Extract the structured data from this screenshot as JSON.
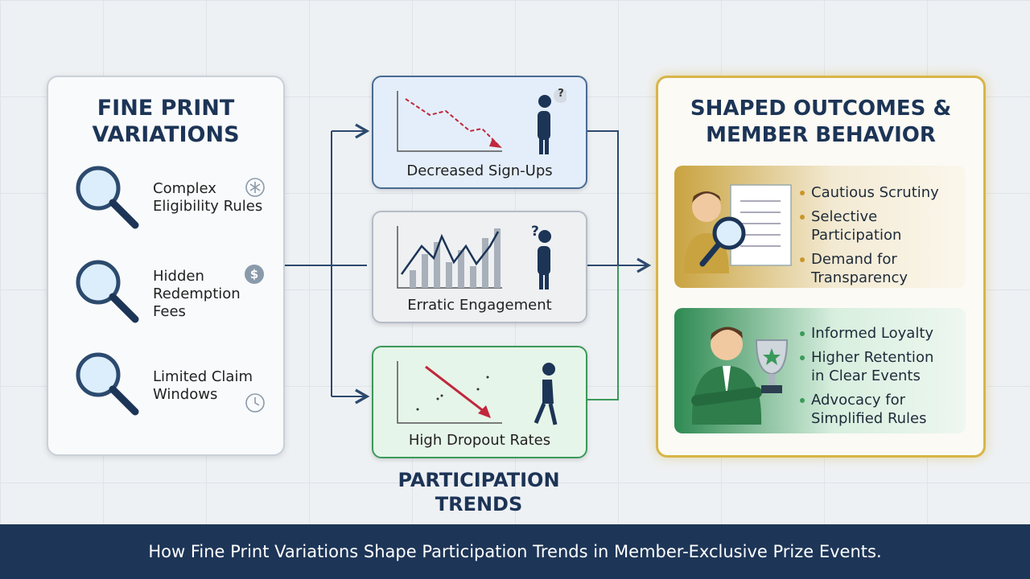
{
  "left_panel": {
    "title": "FINE PRINT VARIATIONS",
    "items": [
      {
        "label": "Complex Eligibility Rules"
      },
      {
        "label": "Hidden Redemption Fees",
        "icon": "$"
      },
      {
        "label": "Limited Claim Windows"
      }
    ]
  },
  "middle": {
    "cards": [
      {
        "label": "Decreased Sign-Ups",
        "badge": "?"
      },
      {
        "label": "Erratic Engagement",
        "badge": "?"
      },
      {
        "label": "High Dropout Rates"
      }
    ],
    "caption": "PARTICIPATION TRENDS"
  },
  "right_panel": {
    "title": "SHAPED OUTCOMES & MEMBER BEHAVIOR",
    "boxes": [
      {
        "bullets": [
          "Cautious Scrutiny",
          "Selective Participation",
          "Demand for Transparency"
        ]
      },
      {
        "bullets": [
          "Informed Loyalty",
          "Higher Retention in Clear Events",
          "Advocacy for Simplified Rules"
        ]
      }
    ]
  },
  "footer": {
    "text": "How Fine Print Variations Shape Participation Trends in Member-Exclusive Prize Events."
  }
}
